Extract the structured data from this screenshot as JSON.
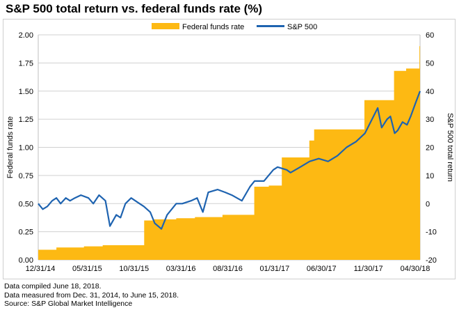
{
  "title": "S&P 500 total return vs. federal funds rate (%)",
  "footnotes": [
    "Data compiled June 18, 2018.",
    "Data measured from Dec. 31, 2014, to June 15, 2018.",
    "Source: S&P Global Market Intelligence"
  ],
  "colors": {
    "fed": "#FDB913",
    "sp": "#1E63B0",
    "grid": "#d0d0d0",
    "border": "#bfbfbf"
  },
  "chart_data": {
    "type": "line",
    "title": "S&P 500 total return vs. federal funds rate (%)",
    "grid": true,
    "legend_placement": "top-center",
    "x_range": [
      "2014-12-31",
      "2018-06-15"
    ],
    "x_ticks": [
      "12/31/14",
      "05/31/15",
      "10/31/15",
      "03/31/16",
      "08/31/16",
      "01/31/17",
      "06/30/17",
      "11/30/17",
      "04/30/18"
    ],
    "y_left": {
      "label": "Federal funds rate",
      "min": 0,
      "max": 2,
      "ticks": [
        "0.00",
        "0.25",
        "0.50",
        "0.75",
        "1.00",
        "1.25",
        "1.50",
        "1.75",
        "2.00"
      ]
    },
    "y_right": {
      "label": "S&P 500 total return",
      "min": -20,
      "max": 60,
      "ticks": [
        "-20",
        "-10",
        "0",
        "10",
        "20",
        "30",
        "40",
        "50",
        "60"
      ]
    },
    "series": [
      {
        "name": "Federal funds rate",
        "kind": "area",
        "axis": "left",
        "color": "#FDB913",
        "x": [
          "2014-12-31",
          "2015-03-01",
          "2015-05-31",
          "2015-08-01",
          "2015-10-31",
          "2015-12-16",
          "2016-01-15",
          "2016-03-31",
          "2016-06-01",
          "2016-08-31",
          "2016-11-01",
          "2016-12-14",
          "2017-01-31",
          "2017-03-15",
          "2017-06-14",
          "2017-06-30",
          "2017-09-01",
          "2017-11-30",
          "2017-12-13",
          "2018-02-01",
          "2018-03-21",
          "2018-04-30",
          "2018-06-13",
          "2018-06-15"
        ],
        "values": [
          0.09,
          0.11,
          0.12,
          0.13,
          0.13,
          0.35,
          0.36,
          0.37,
          0.38,
          0.4,
          0.4,
          0.65,
          0.66,
          0.91,
          1.06,
          1.16,
          1.16,
          1.16,
          1.42,
          1.42,
          1.68,
          1.7,
          1.9,
          1.9
        ]
      },
      {
        "name": "S&P 500",
        "kind": "line",
        "axis": "right",
        "color": "#1E63B0",
        "x": [
          "2014-12-31",
          "2015-01-15",
          "2015-01-30",
          "2015-02-15",
          "2015-03-01",
          "2015-03-15",
          "2015-04-01",
          "2015-04-15",
          "2015-05-01",
          "2015-05-21",
          "2015-06-15",
          "2015-07-01",
          "2015-07-20",
          "2015-08-10",
          "2015-08-25",
          "2015-09-15",
          "2015-09-29",
          "2015-10-15",
          "2015-11-03",
          "2015-12-01",
          "2015-12-15",
          "2016-01-05",
          "2016-01-20",
          "2016-02-11",
          "2016-03-01",
          "2016-03-31",
          "2016-04-20",
          "2016-05-19",
          "2016-06-08",
          "2016-06-27",
          "2016-07-15",
          "2016-08-15",
          "2016-09-09",
          "2016-10-01",
          "2016-11-03",
          "2016-11-30",
          "2016-12-15",
          "2017-01-15",
          "2017-02-15",
          "2017-03-01",
          "2017-03-31",
          "2017-04-13",
          "2017-05-15",
          "2017-06-15",
          "2017-07-15",
          "2017-08-15",
          "2017-09-15",
          "2017-10-15",
          "2017-11-15",
          "2017-12-15",
          "2018-01-26",
          "2018-02-08",
          "2018-02-26",
          "2018-03-09",
          "2018-03-23",
          "2018-04-02",
          "2018-04-18",
          "2018-05-03",
          "2018-05-15",
          "2018-06-01",
          "2018-06-15"
        ],
        "values": [
          0,
          -2,
          -1,
          1,
          2,
          0,
          2,
          1,
          2,
          3,
          2,
          0,
          3,
          1,
          -8,
          -4,
          -5,
          0,
          2,
          0,
          -1,
          -3,
          -7,
          -9,
          -4,
          0,
          0,
          1,
          2,
          -3,
          4,
          5,
          4,
          3,
          1,
          6,
          8,
          8,
          12,
          13,
          12,
          11,
          13,
          15,
          16,
          15,
          17,
          20,
          22,
          25,
          34,
          27,
          30,
          31,
          25,
          26,
          29,
          28,
          31,
          36,
          40
        ]
      }
    ]
  }
}
